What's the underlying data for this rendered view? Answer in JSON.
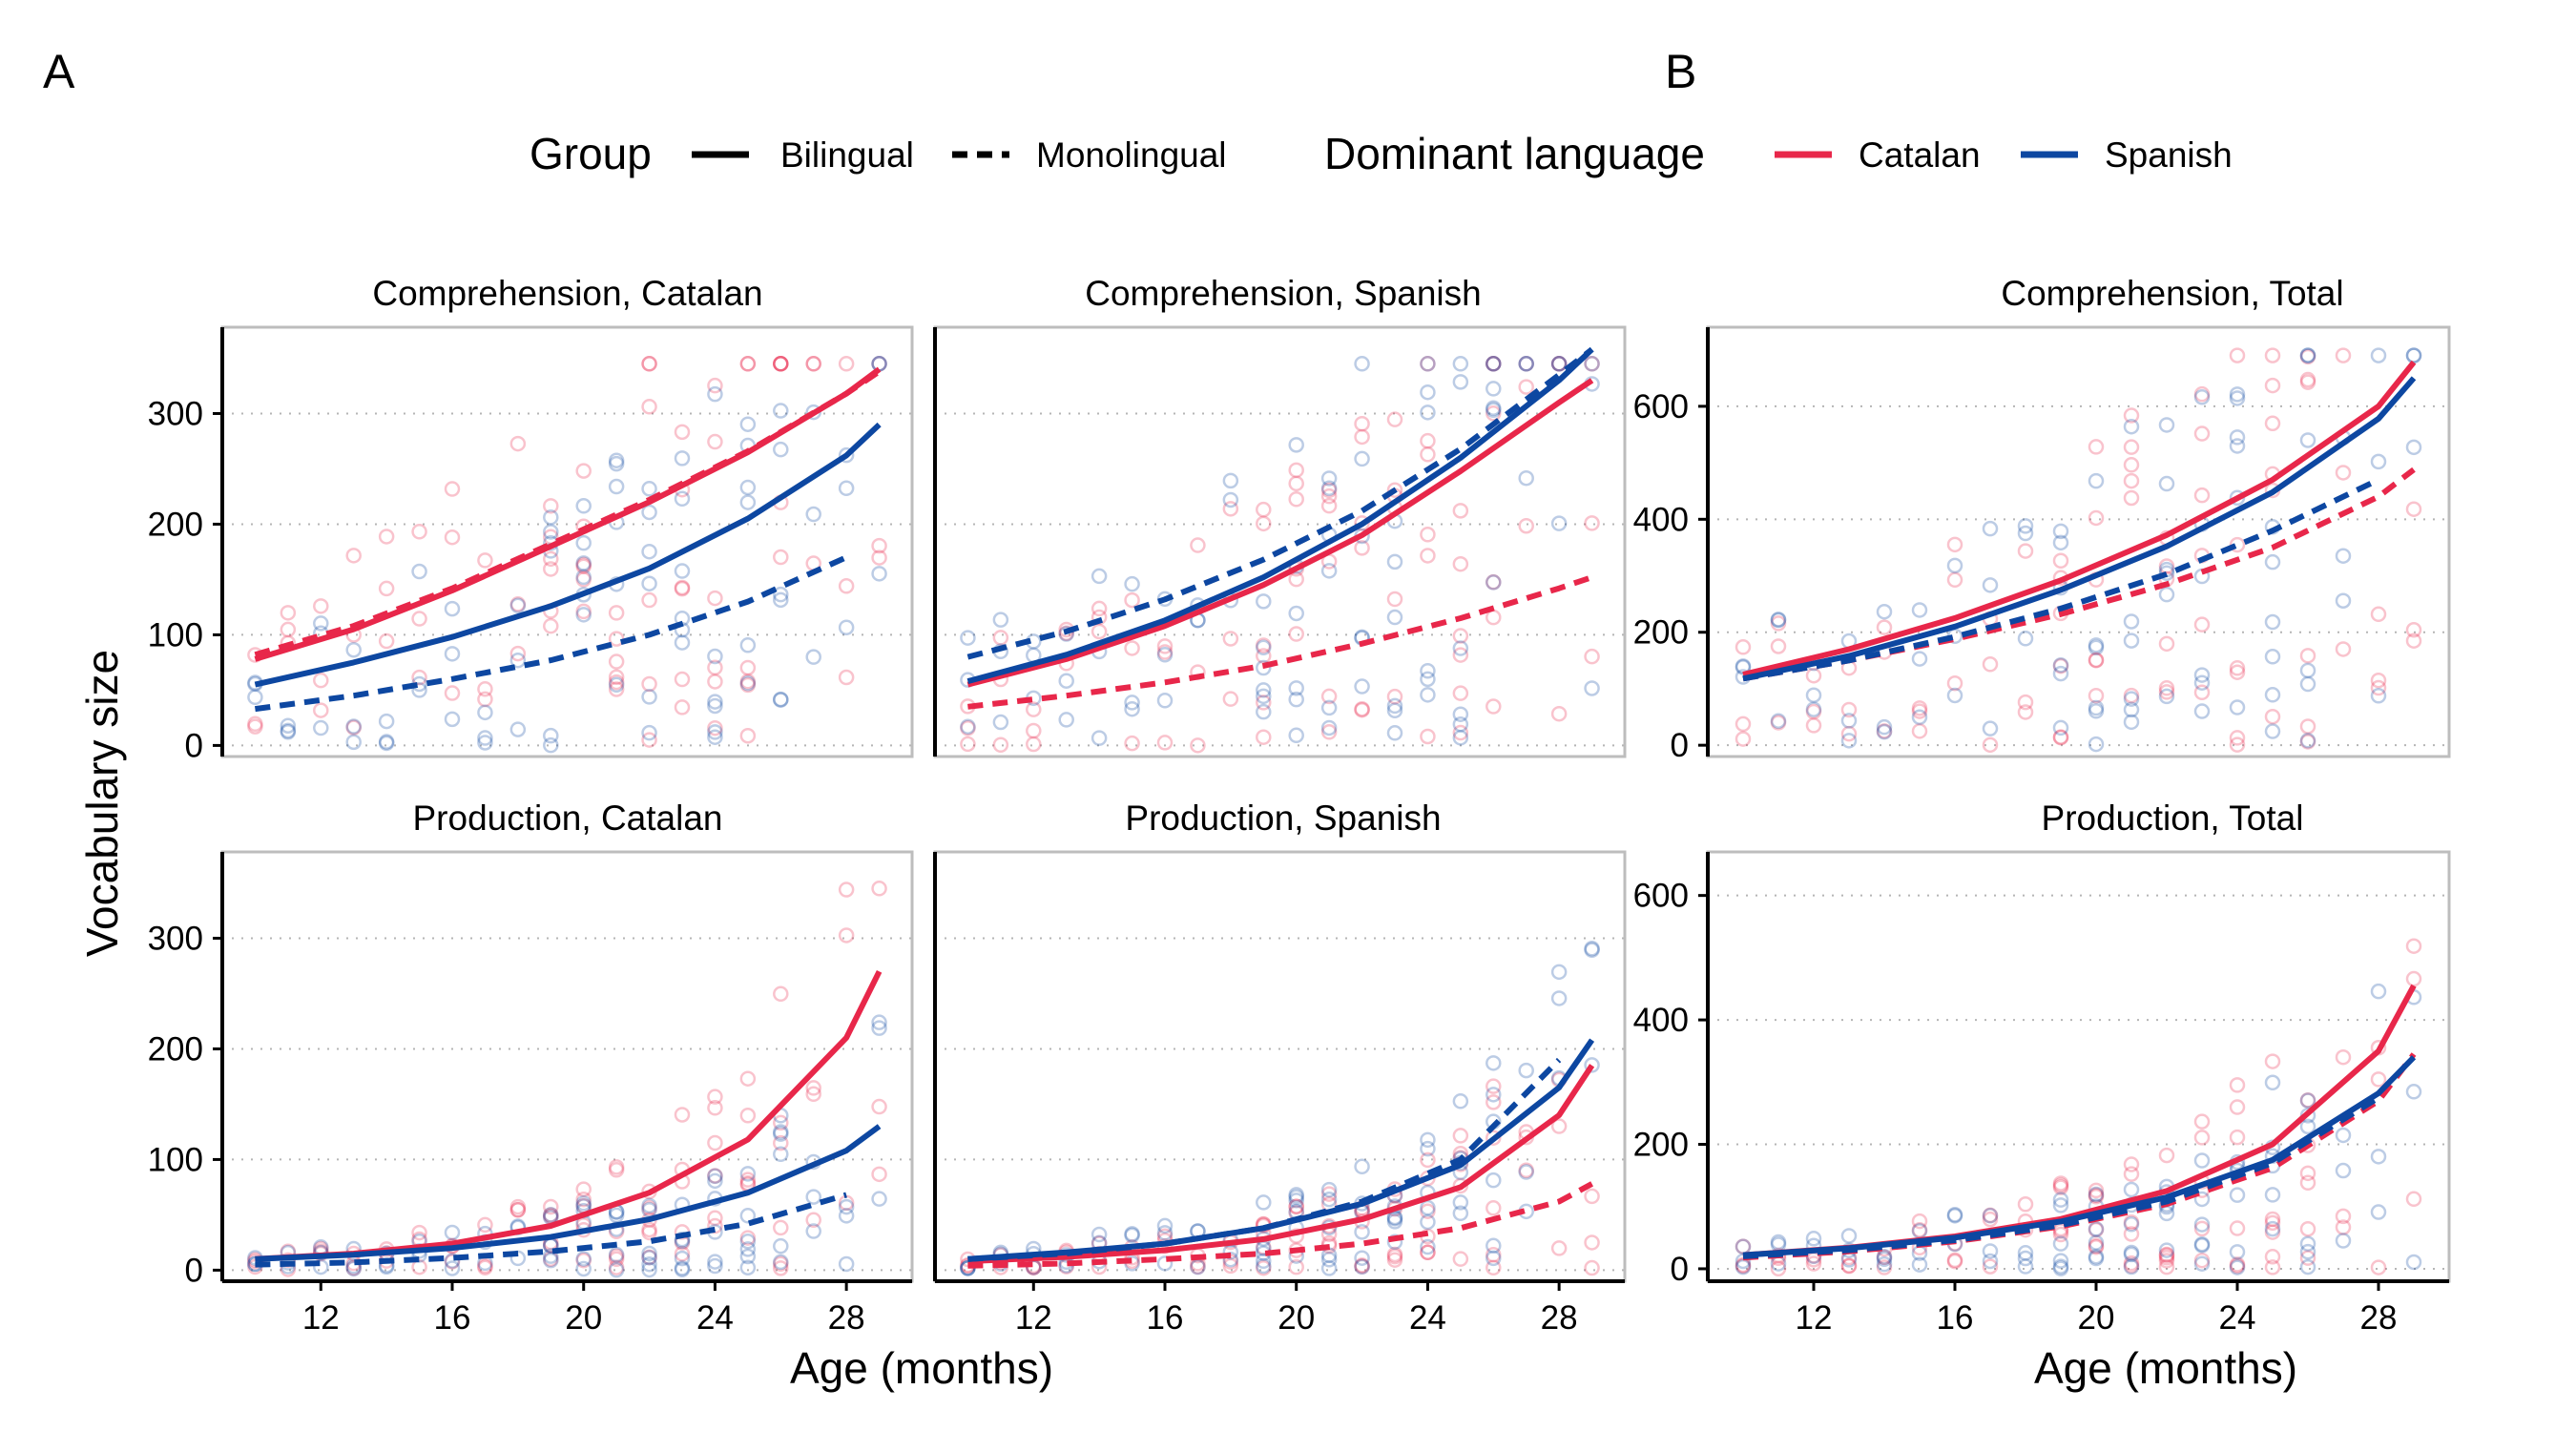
{
  "panel_labels": [
    "A",
    "B"
  ],
  "legend": {
    "group_title": "Group",
    "group_items": [
      {
        "label": "Bilingual",
        "style": "solid"
      },
      {
        "label": "Monolingual",
        "style": "dashed"
      }
    ],
    "language_title": "Dominant language",
    "language_items": [
      {
        "label": "Catalan",
        "color": "#e8274a"
      },
      {
        "label": "Spanish",
        "color": "#0d47a1"
      }
    ]
  },
  "colors": {
    "Catalan": "#e8274a",
    "Spanish": "#0d47a1"
  },
  "chart_data": [
    {
      "type": "scatter",
      "title": "Comprehension, Catalan",
      "xlabel": "Age (months)",
      "ylabel": "Vocabulary size",
      "xlim": [
        9,
        30
      ],
      "ylim": [
        -10,
        378
      ],
      "xticks": [
        12,
        16,
        20,
        24,
        28
      ],
      "yticks": [
        0,
        100,
        200,
        300
      ],
      "grid": "horizontal dotted",
      "series": [
        {
          "name": "Bilingual, Catalan",
          "color": "#e8274a",
          "style": "solid",
          "x": [
            10,
            13,
            16,
            19,
            22,
            25,
            28,
            29
          ],
          "y": [
            78,
            105,
            140,
            180,
            220,
            265,
            318,
            340
          ]
        },
        {
          "name": "Monolingual, Catalan",
          "color": "#e8274a",
          "style": "dashed",
          "x": [
            10,
            13,
            16,
            19,
            22,
            25,
            28,
            29
          ],
          "y": [
            82,
            108,
            142,
            182,
            222,
            266,
            318,
            338
          ]
        },
        {
          "name": "Bilingual, Spanish",
          "color": "#0d47a1",
          "style": "solid",
          "x": [
            10,
            13,
            16,
            19,
            22,
            25,
            28,
            29
          ],
          "y": [
            55,
            75,
            98,
            126,
            160,
            205,
            262,
            290
          ]
        },
        {
          "name": "Monolingual, Spanish",
          "color": "#0d47a1",
          "style": "dashed",
          "x": [
            10,
            13,
            16,
            19,
            22,
            25,
            28
          ],
          "y": [
            33,
            45,
            60,
            77,
            100,
            130,
            170
          ]
        }
      ]
    },
    {
      "type": "scatter",
      "title": "Comprehension, Spanish",
      "xlabel": "Age (months)",
      "ylabel": "Vocabulary size",
      "xlim": [
        9,
        30
      ],
      "ylim": [
        -10,
        378
      ],
      "xticks": [
        12,
        16,
        20,
        24,
        28
      ],
      "yticks": [
        0,
        100,
        200,
        300
      ],
      "grid": "horizontal dotted",
      "series": [
        {
          "name": "Bilingual, Catalan",
          "color": "#e8274a",
          "style": "solid",
          "x": [
            10,
            13,
            16,
            19,
            22,
            25,
            28,
            29
          ],
          "y": [
            55,
            78,
            108,
            145,
            190,
            248,
            310,
            330
          ]
        },
        {
          "name": "Monolingual, Catalan",
          "color": "#e8274a",
          "style": "dashed",
          "x": [
            10,
            13,
            16,
            19,
            22,
            25,
            28,
            29
          ],
          "y": [
            35,
            45,
            57,
            72,
            92,
            115,
            142,
            152
          ]
        },
        {
          "name": "Bilingual, Spanish",
          "color": "#0d47a1",
          "style": "solid",
          "x": [
            10,
            13,
            16,
            19,
            22,
            25,
            28,
            29
          ],
          "y": [
            58,
            82,
            113,
            152,
            200,
            260,
            330,
            358
          ]
        },
        {
          "name": "Monolingual, Spanish",
          "color": "#0d47a1",
          "style": "dashed",
          "x": [
            10,
            13,
            16,
            19,
            22,
            25,
            28,
            29
          ],
          "y": [
            80,
            103,
            132,
            168,
            212,
            268,
            335,
            358
          ]
        }
      ]
    },
    {
      "type": "scatter",
      "title": "Comprehension, Total",
      "xlabel": "Age (months)",
      "ylabel": "Vocabulary size",
      "xlim": [
        9,
        30
      ],
      "ylim": [
        -20,
        740
      ],
      "xticks": [
        12,
        16,
        20,
        24,
        28
      ],
      "yticks": [
        0,
        200,
        400,
        600
      ],
      "grid": "horizontal dotted",
      "series": [
        {
          "name": "Bilingual, Catalan",
          "color": "#e8274a",
          "style": "solid",
          "x": [
            10,
            13,
            16,
            19,
            22,
            25,
            28,
            29
          ],
          "y": [
            125,
            170,
            225,
            292,
            372,
            470,
            600,
            678
          ]
        },
        {
          "name": "Monolingual, Catalan",
          "color": "#e8274a",
          "style": "dashed",
          "x": [
            10,
            13,
            16,
            19,
            22,
            25,
            28,
            29
          ],
          "y": [
            118,
            150,
            188,
            232,
            285,
            350,
            440,
            488
          ]
        },
        {
          "name": "Bilingual, Spanish",
          "color": "#0d47a1",
          "style": "solid",
          "x": [
            10,
            13,
            16,
            19,
            22,
            25,
            28,
            29
          ],
          "y": [
            118,
            158,
            210,
            275,
            352,
            448,
            578,
            650
          ]
        },
        {
          "name": "Monolingual, Spanish",
          "color": "#0d47a1",
          "style": "dashed",
          "x": [
            10,
            13,
            16,
            19,
            22,
            25,
            28
          ],
          "y": [
            118,
            150,
            192,
            242,
            303,
            380,
            470
          ]
        }
      ]
    },
    {
      "type": "scatter",
      "title": "Production, Catalan",
      "xlabel": "Age (months)",
      "ylabel": "Vocabulary size",
      "xlim": [
        9,
        30
      ],
      "ylim": [
        -10,
        378
      ],
      "xticks": [
        12,
        16,
        20,
        24,
        28
      ],
      "yticks": [
        0,
        100,
        200,
        300
      ],
      "grid": "horizontal dotted",
      "series": [
        {
          "name": "Bilingual, Catalan",
          "color": "#e8274a",
          "style": "solid",
          "x": [
            10,
            13,
            16,
            19,
            22,
            25,
            28,
            29
          ],
          "y": [
            10,
            15,
            24,
            40,
            70,
            118,
            210,
            270
          ]
        },
        {
          "name": "Bilingual, Spanish",
          "color": "#0d47a1",
          "style": "solid",
          "x": [
            10,
            13,
            16,
            19,
            22,
            25,
            28,
            29
          ],
          "y": [
            10,
            14,
            20,
            30,
            46,
            70,
            108,
            130
          ]
        },
        {
          "name": "Monolingual, Spanish",
          "color": "#0d47a1",
          "style": "dashed",
          "x": [
            10,
            13,
            16,
            19,
            22,
            25,
            28
          ],
          "y": [
            5,
            7,
            11,
            17,
            26,
            42,
            68
          ]
        }
      ]
    },
    {
      "type": "scatter",
      "title": "Production, Spanish",
      "xlabel": "Age (months)",
      "ylabel": "Vocabulary size",
      "xlim": [
        9,
        30
      ],
      "ylim": [
        -10,
        378
      ],
      "xticks": [
        12,
        16,
        20,
        24,
        28
      ],
      "yticks": [
        0,
        100,
        200,
        300
      ],
      "grid": "horizontal dotted",
      "series": [
        {
          "name": "Bilingual, Catalan",
          "color": "#e8274a",
          "style": "solid",
          "x": [
            10,
            13,
            16,
            19,
            22,
            25,
            28,
            29
          ],
          "y": [
            8,
            12,
            18,
            28,
            46,
            75,
            140,
            185
          ]
        },
        {
          "name": "Monolingual, Catalan",
          "color": "#e8274a",
          "style": "dashed",
          "x": [
            10,
            13,
            16,
            19,
            22,
            25,
            28,
            29
          ],
          "y": [
            4,
            6,
            10,
            15,
            24,
            38,
            62,
            78
          ]
        },
        {
          "name": "Bilingual, Spanish",
          "color": "#0d47a1",
          "style": "solid",
          "x": [
            10,
            13,
            16,
            19,
            22,
            25,
            28,
            29
          ],
          "y": [
            10,
            16,
            24,
            38,
            60,
            95,
            165,
            208
          ]
        },
        {
          "name": "Monolingual, Spanish",
          "color": "#0d47a1",
          "style": "dashed",
          "x": [
            10,
            13,
            16,
            19,
            22,
            25,
            28
          ],
          "y": [
            10,
            15,
            24,
            38,
            62,
            100,
            190
          ]
        }
      ]
    },
    {
      "type": "scatter",
      "title": "Production, Total",
      "xlabel": "Age (months)",
      "ylabel": "Vocabulary size",
      "xlim": [
        9,
        30
      ],
      "ylim": [
        -20,
        670
      ],
      "xticks": [
        12,
        16,
        20,
        24,
        28
      ],
      "yticks": [
        0,
        200,
        400,
        600
      ],
      "grid": "horizontal dotted",
      "series": [
        {
          "name": "Bilingual, Catalan",
          "color": "#e8274a",
          "style": "solid",
          "x": [
            10,
            13,
            16,
            19,
            22,
            25,
            28,
            29
          ],
          "y": [
            22,
            34,
            52,
            80,
            125,
            200,
            350,
            455
          ]
        },
        {
          "name": "Monolingual, Catalan",
          "color": "#e8274a",
          "style": "dashed",
          "x": [
            10,
            13,
            16,
            19,
            22,
            25,
            28,
            29
          ],
          "y": [
            18,
            28,
            44,
            68,
            104,
            162,
            270,
            345
          ]
        },
        {
          "name": "Bilingual, Spanish",
          "color": "#0d47a1",
          "style": "solid",
          "x": [
            10,
            13,
            16,
            19,
            22,
            25,
            28,
            29
          ],
          "y": [
            22,
            33,
            50,
            76,
            115,
            175,
            282,
            340
          ]
        },
        {
          "name": "Monolingual, Spanish",
          "color": "#0d47a1",
          "style": "dashed",
          "x": [
            10,
            13,
            16,
            19,
            22,
            25,
            28
          ],
          "y": [
            20,
            30,
            46,
            70,
            108,
            170,
            275
          ]
        }
      ]
    }
  ]
}
